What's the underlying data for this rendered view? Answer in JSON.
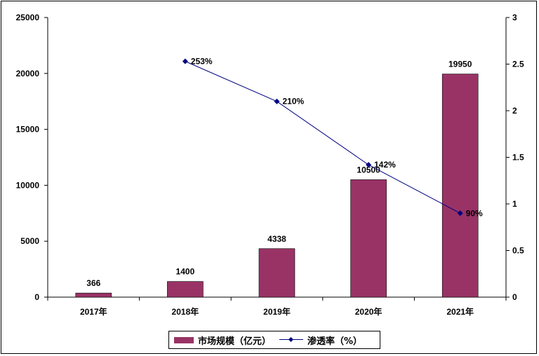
{
  "chart_data": {
    "type": "bar",
    "categories": [
      "2017年",
      "2018年",
      "2019年",
      "2020年",
      "2021年"
    ],
    "series": [
      {
        "name": "市场规模（亿元）",
        "type": "bar",
        "axis": "left",
        "color": "#993366",
        "values": [
          366,
          1400,
          4338,
          10500,
          19950
        ],
        "labels": [
          "366",
          "1400",
          "4338",
          "10500",
          "19950"
        ]
      },
      {
        "name": "渗透率（%）",
        "type": "line",
        "axis": "right",
        "color": "#000080",
        "values": [
          null,
          2.53,
          2.1,
          1.42,
          0.9
        ],
        "labels": [
          "",
          "253%",
          "210%",
          "142%",
          "90%"
        ]
      }
    ],
    "left_axis": {
      "min": 0,
      "max": 25000,
      "ticks": [
        "0",
        "5000",
        "10000",
        "15000",
        "20000",
        "25000"
      ]
    },
    "right_axis": {
      "min": 0,
      "max": 3,
      "ticks": [
        "0",
        "0.5",
        "1",
        "1.5",
        "2",
        "2.5",
        "3"
      ]
    },
    "title": "",
    "xlabel": "",
    "ylabel": "",
    "grid": false,
    "legend_position": "bottom"
  }
}
